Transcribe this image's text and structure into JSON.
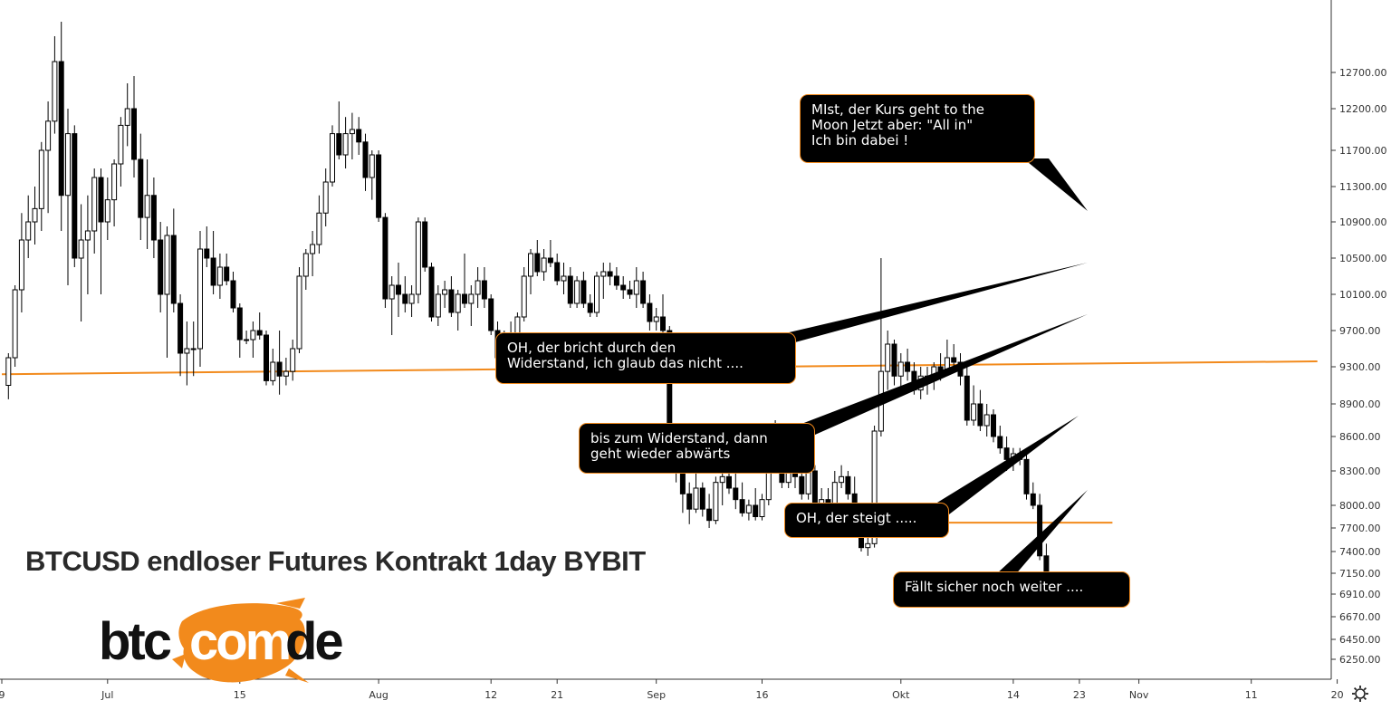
{
  "chart_title": "BTCUSD endloser Futures Kontrakt 1day BYBIT",
  "logo": {
    "left": "btc",
    "middle": "com",
    "right": "de"
  },
  "colors": {
    "up": "#ffffff",
    "down": "#000000",
    "line": "#f28a1c",
    "callout_border": "#f28a1c",
    "logo_orange": "#f28a1c"
  },
  "callouts": [
    {
      "id": "moon",
      "text": "MIst, der Kurs geht to the\nMoon Jetzt aber: \"All in\"\nIch bin dabei !"
    },
    {
      "id": "bricht",
      "text": "OH, der bricht durch den\nWiderstand, ich glaub das nicht ...."
    },
    {
      "id": "widerstand",
      "text": "bis zum Widerstand, dann\ngeht wieder abwärts"
    },
    {
      "id": "steigt",
      "text": "OH, der steigt ....."
    },
    {
      "id": "faellt",
      "text": "Fällt sicher noch weiter ...."
    }
  ],
  "chart_data": {
    "type": "candlestick",
    "y_ticks": [
      6250,
      6450,
      6670,
      6910,
      7150,
      7400,
      7700,
      8000,
      8300,
      8600,
      8900,
      9300,
      9700,
      10100,
      10500,
      10900,
      11300,
      11700,
      12200,
      12700
    ],
    "y_tick_labels": [
      "6250.00",
      "6450.00",
      "6670.00",
      "6910.00",
      "7150.00",
      "7400.00",
      "7700.00",
      "8000.00",
      "8300.00",
      "8600.00",
      "8900.00",
      "9300.00",
      "9700.00",
      "10100.00",
      "10500.00",
      "10900.00",
      "11300.00",
      "11700.00",
      "12200.00",
      "12700.00"
    ],
    "x_tick_labels": [
      "9",
      "Jul",
      "15",
      "Aug",
      "12",
      "21",
      "Sep",
      "16",
      "Okt",
      "14",
      "23",
      "Nov",
      "11",
      "20"
    ],
    "x_tick_day_index": [
      0,
      16,
      36,
      57,
      74,
      84,
      99,
      115,
      136,
      153,
      163,
      172,
      189,
      202
    ],
    "candle_day_offset": 1,
    "horizontal_lines": [
      {
        "from_day": 0,
        "to_day": 199,
        "value_start": 9220,
        "value_end": 9360
      },
      {
        "from_day": 131,
        "to_day": 168,
        "value_start": 7770,
        "value_end": 7770
      }
    ],
    "ohlc": [
      [
        9100,
        9450,
        8950,
        9400
      ],
      [
        9400,
        10200,
        9300,
        10150
      ],
      [
        10150,
        11000,
        9900,
        10700
      ],
      [
        10700,
        11200,
        10500,
        10900
      ],
      [
        10900,
        11300,
        10650,
        11050
      ],
      [
        11050,
        11800,
        10800,
        11700
      ],
      [
        11700,
        12300,
        11000,
        12050
      ],
      [
        12050,
        13200,
        11900,
        12850
      ],
      [
        12850,
        13400,
        10800,
        11200
      ],
      [
        11200,
        12200,
        10200,
        11900
      ],
      [
        11900,
        12000,
        10400,
        10500
      ],
      [
        10500,
        11100,
        9800,
        10700
      ],
      [
        10700,
        11200,
        10100,
        10800
      ],
      [
        10800,
        11500,
        10550,
        11400
      ],
      [
        11400,
        11500,
        10100,
        10900
      ],
      [
        10900,
        11400,
        10700,
        11150
      ],
      [
        11150,
        11600,
        10850,
        11550
      ],
      [
        11550,
        12100,
        11300,
        12000
      ],
      [
        12000,
        12550,
        11750,
        12200
      ],
      [
        12200,
        12650,
        11400,
        11600
      ],
      [
        11600,
        11900,
        10700,
        10950
      ],
      [
        10950,
        11600,
        10600,
        11200
      ],
      [
        11200,
        11400,
        10500,
        10700
      ],
      [
        10700,
        10900,
        9900,
        10100
      ],
      [
        10100,
        10850,
        9400,
        10750
      ],
      [
        10750,
        11050,
        9900,
        10000
      ],
      [
        10000,
        10100,
        9200,
        9450
      ],
      [
        9450,
        9800,
        9100,
        9500
      ],
      [
        9500,
        9800,
        9200,
        9500
      ],
      [
        9500,
        10800,
        9300,
        10600
      ],
      [
        10600,
        10850,
        10400,
        10500
      ],
      [
        10500,
        10800,
        10100,
        10200
      ],
      [
        10200,
        10550,
        10050,
        10400
      ],
      [
        10400,
        10550,
        10200,
        10250
      ],
      [
        10250,
        10350,
        9900,
        9950
      ],
      [
        9950,
        10000,
        9400,
        9600
      ],
      [
        9600,
        9700,
        9550,
        9600
      ],
      [
        9600,
        9800,
        9400,
        9700
      ],
      [
        9700,
        9900,
        9600,
        9650
      ],
      [
        9650,
        9700,
        9100,
        9150
      ],
      [
        9150,
        9500,
        9100,
        9350
      ],
      [
        9350,
        9700,
        9000,
        9200
      ],
      [
        9200,
        9400,
        9100,
        9250
      ],
      [
        9250,
        9600,
        9150,
        9500
      ],
      [
        9500,
        10400,
        9450,
        10300
      ],
      [
        10300,
        10600,
        10150,
        10550
      ],
      [
        10550,
        10800,
        10300,
        10650
      ],
      [
        10650,
        11200,
        10550,
        11000
      ],
      [
        11000,
        11500,
        10850,
        11350
      ],
      [
        11350,
        12000,
        11300,
        11900
      ],
      [
        11900,
        12300,
        11600,
        11650
      ],
      [
        11650,
        12100,
        11500,
        11900
      ],
      [
        11900,
        12150,
        11600,
        11950
      ],
      [
        11950,
        12100,
        11650,
        11800
      ],
      [
        11800,
        11900,
        11250,
        11400
      ],
      [
        11400,
        11700,
        11150,
        11650
      ],
      [
        11650,
        11700,
        10900,
        10950
      ],
      [
        10950,
        11000,
        9950,
        10050
      ],
      [
        10050,
        10300,
        9650,
        10200
      ],
      [
        10200,
        10450,
        9850,
        10100
      ],
      [
        10100,
        10300,
        9900,
        10000
      ],
      [
        10000,
        10200,
        9850,
        10100
      ],
      [
        10100,
        10950,
        10000,
        10900
      ],
      [
        10900,
        10950,
        10350,
        10400
      ],
      [
        10400,
        10450,
        9800,
        9850
      ],
      [
        9850,
        10200,
        9750,
        10100
      ],
      [
        10100,
        10250,
        9950,
        10150
      ],
      [
        10150,
        10300,
        9850,
        9900
      ],
      [
        9900,
        10150,
        9700,
        10100
      ],
      [
        10100,
        10550,
        9950,
        10000
      ],
      [
        10000,
        10200,
        9750,
        10100
      ],
      [
        10100,
        10400,
        9950,
        10250
      ],
      [
        10250,
        10400,
        9950,
        10050
      ],
      [
        10050,
        10100,
        9650,
        9700
      ],
      [
        9700,
        9800,
        9300,
        9400
      ],
      [
        9400,
        9700,
        9350,
        9600
      ],
      [
        9600,
        9800,
        9400,
        9650
      ],
      [
        9650,
        9900,
        9550,
        9850
      ],
      [
        9850,
        10400,
        9800,
        10300
      ],
      [
        10300,
        10600,
        10100,
        10550
      ],
      [
        10550,
        10700,
        10300,
        10350
      ],
      [
        10350,
        10600,
        10250,
        10500
      ],
      [
        10500,
        10700,
        10400,
        10450
      ],
      [
        10450,
        10550,
        10200,
        10250
      ],
      [
        10250,
        10450,
        10100,
        10300
      ],
      [
        10300,
        10400,
        9950,
        10000
      ],
      [
        10000,
        10300,
        9950,
        10250
      ],
      [
        10250,
        10350,
        9950,
        10000
      ],
      [
        10000,
        10100,
        9850,
        9900
      ],
      [
        9900,
        10350,
        9850,
        10300
      ],
      [
        10300,
        10450,
        10050,
        10350
      ],
      [
        10350,
        10450,
        10200,
        10300
      ],
      [
        10300,
        10400,
        10150,
        10200
      ],
      [
        10200,
        10300,
        10050,
        10150
      ],
      [
        10150,
        10250,
        10050,
        10100
      ],
      [
        10100,
        10400,
        9950,
        10250
      ],
      [
        10250,
        10350,
        9950,
        10000
      ],
      [
        10000,
        10100,
        9700,
        9800
      ],
      [
        9800,
        9950,
        9700,
        9850
      ],
      [
        9850,
        10100,
        9600,
        9700
      ],
      [
        9700,
        9750,
        8400,
        8550
      ],
      [
        8550,
        8700,
        8200,
        8350
      ],
      [
        8350,
        8450,
        7900,
        8100
      ],
      [
        8100,
        8200,
        7750,
        7950
      ],
      [
        7950,
        8300,
        7900,
        8150
      ],
      [
        8150,
        8200,
        7850,
        7950
      ],
      [
        7950,
        8100,
        7700,
        7800
      ],
      [
        7800,
        8250,
        7750,
        8200
      ],
      [
        8200,
        8350,
        8000,
        8250
      ],
      [
        8250,
        8400,
        8100,
        8150
      ],
      [
        8150,
        8300,
        7950,
        8050
      ],
      [
        8050,
        8200,
        7850,
        7900
      ],
      [
        7900,
        8050,
        7800,
        8000
      ],
      [
        8000,
        8150,
        7800,
        7850
      ],
      [
        7850,
        8100,
        7800,
        8050
      ],
      [
        8050,
        8600,
        8000,
        8500
      ],
      [
        8500,
        8750,
        8400,
        8600
      ],
      [
        8600,
        8650,
        8150,
        8200
      ],
      [
        8200,
        8400,
        8150,
        8350
      ],
      [
        8350,
        8400,
        8150,
        8250
      ],
      [
        8250,
        8400,
        8050,
        8100
      ],
      [
        8100,
        8350,
        8050,
        8300
      ],
      [
        8300,
        8350,
        7900,
        7950
      ],
      [
        7950,
        8150,
        7900,
        8050
      ],
      [
        8050,
        8150,
        7900,
        7950
      ],
      [
        7950,
        8300,
        7950,
        8200
      ],
      [
        8200,
        8350,
        8150,
        8250
      ],
      [
        8250,
        8300,
        8050,
        8100
      ],
      [
        8100,
        8250,
        7900,
        7950
      ],
      [
        7950,
        8000,
        7400,
        7450
      ],
      [
        7450,
        7650,
        7350,
        7500
      ],
      [
        7500,
        8700,
        7450,
        8650
      ],
      [
        8650,
        10500,
        8600,
        9250
      ],
      [
        9250,
        9700,
        9050,
        9550
      ],
      [
        9550,
        9600,
        9100,
        9200
      ],
      [
        9200,
        9450,
        9050,
        9350
      ],
      [
        9350,
        9500,
        9150,
        9250
      ],
      [
        9250,
        9350,
        9000,
        9050
      ],
      [
        9050,
        9300,
        8950,
        9200
      ],
      [
        9200,
        9300,
        9000,
        9150
      ],
      [
        9150,
        9350,
        9050,
        9300
      ],
      [
        9300,
        9450,
        9150,
        9250
      ],
      [
        9250,
        9600,
        9200,
        9400
      ],
      [
        9400,
        9550,
        9300,
        9350
      ],
      [
        9350,
        9450,
        9100,
        9200
      ],
      [
        9200,
        9350,
        8700,
        8750
      ],
      [
        8750,
        9100,
        8700,
        8900
      ],
      [
        8900,
        9050,
        8650,
        8700
      ],
      [
        8700,
        8900,
        8600,
        8800
      ],
      [
        8800,
        8850,
        8550,
        8600
      ],
      [
        8600,
        8700,
        8450,
        8500
      ],
      [
        8500,
        8600,
        8300,
        8400
      ],
      [
        8400,
        8500,
        8300,
        8450
      ],
      [
        8450,
        8500,
        8350,
        8400
      ],
      [
        8400,
        8500,
        8050,
        8100
      ],
      [
        8100,
        8200,
        7950,
        8000
      ],
      [
        8000,
        8100,
        7300,
        7350
      ],
      [
        7350,
        7500,
        6800,
        7100
      ]
    ]
  }
}
